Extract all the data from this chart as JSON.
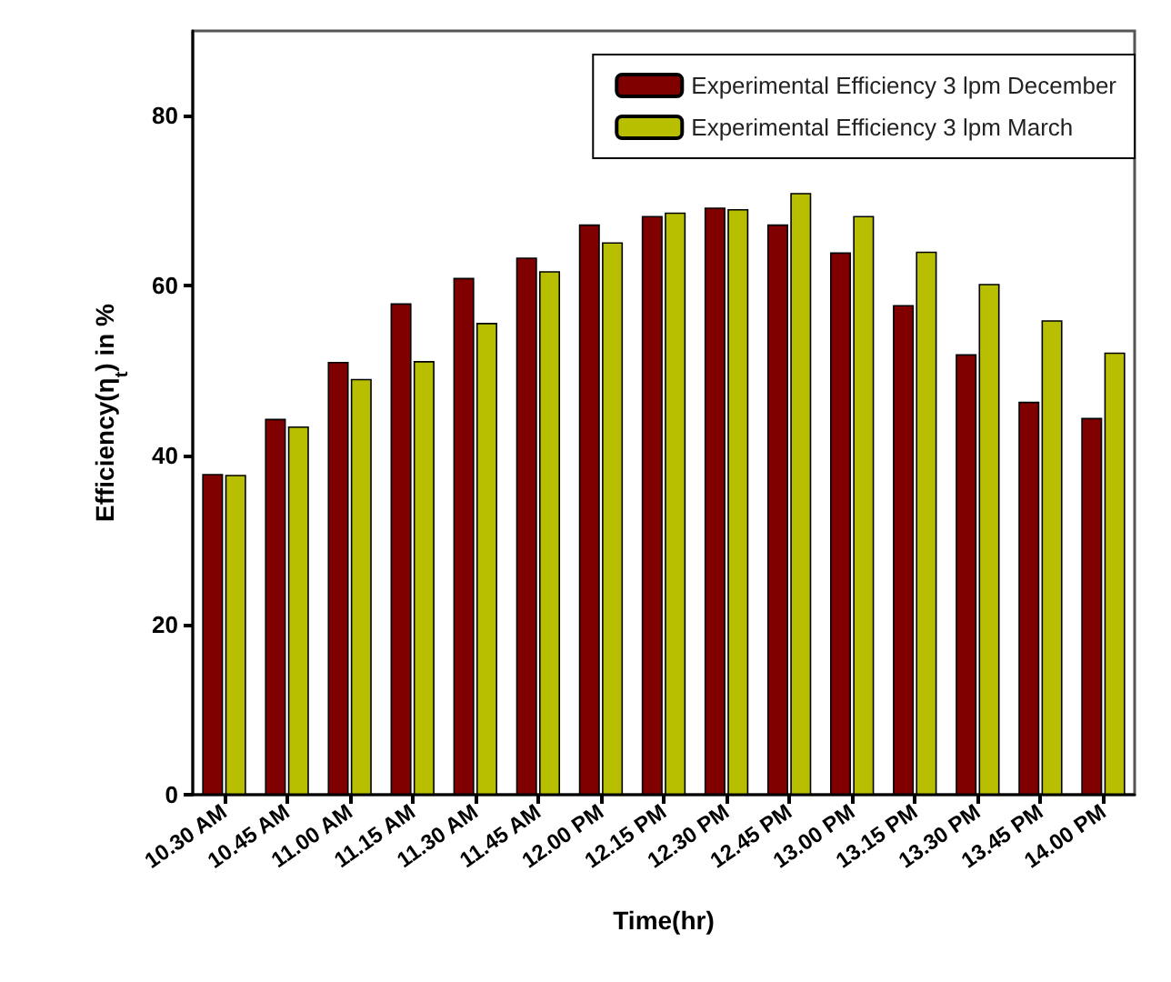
{
  "chart_data": {
    "type": "bar",
    "xlabel": "Time(hr)",
    "ylabel": "Efficiency(η$_{t}$) in %",
    "categories": [
      "10.30 AM",
      "10.45 AM",
      "11.00 AM",
      "11.15 AM",
      "11.30 AM",
      "11.45 AM",
      "12.00 PM",
      "12.15 PM",
      "12.30 PM",
      "12.45 PM",
      "13.00 PM",
      "13.15 PM",
      "13.30 PM",
      "13.45 PM",
      "14.00 PM"
    ],
    "series": [
      {
        "name": "Experimental Efficiency 3 lpm December",
        "color": "#800000",
        "values": [
          37.8,
          44.3,
          51.0,
          57.9,
          60.9,
          63.3,
          67.2,
          68.2,
          69.2,
          67.2,
          63.9,
          57.7,
          51.9,
          46.3,
          44.4
        ]
      },
      {
        "name": "Experimental Efficiency 3 lpm March",
        "color": "#b8bf00",
        "values": [
          37.7,
          43.4,
          49.0,
          51.1,
          55.6,
          61.7,
          65.1,
          68.6,
          69.0,
          70.9,
          68.2,
          64.0,
          60.2,
          55.9,
          52.1
        ]
      }
    ],
    "ylim": [
      0,
      90
    ],
    "yticks": [
      0,
      20,
      40,
      60,
      80
    ],
    "grid": false,
    "legend": "top right"
  }
}
